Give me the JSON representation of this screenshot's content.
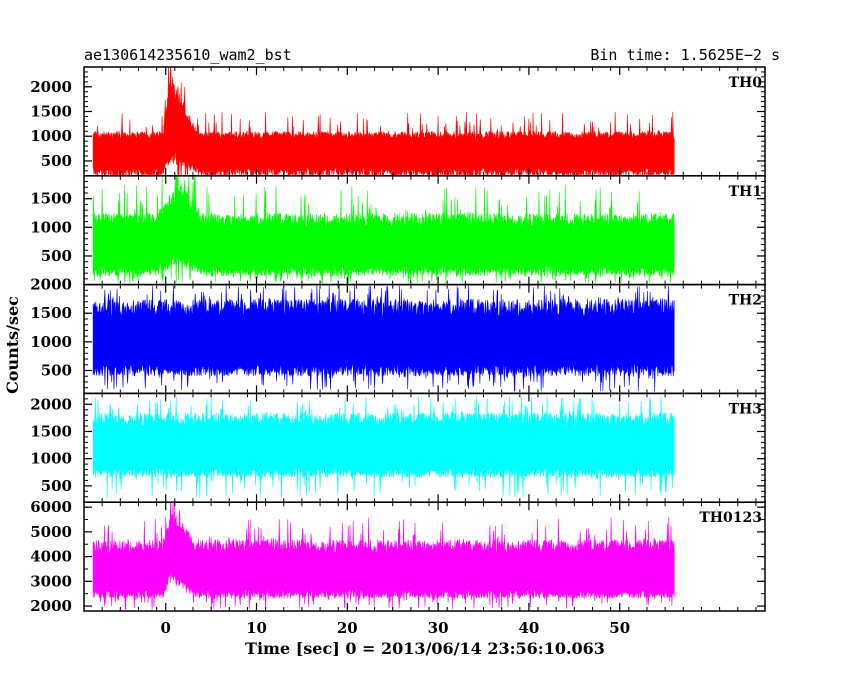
{
  "header": {
    "title": "ae130614235610_wam2_bst",
    "bin_time": "Bin time: 1.5625E−2 s"
  },
  "chart_data": {
    "type": "line",
    "xlabel": "Time [sec] 0 = 2013/06/14 23:56:10.063",
    "ylabel": "Counts/sec",
    "xlim": [
      -9,
      66
    ],
    "x_ticks": [
      0,
      10,
      20,
      30,
      40,
      50
    ],
    "x_range_data": [
      -8,
      56
    ],
    "panels": [
      {
        "name": "TH0",
        "color": "#ff0000",
        "ylim": [
          200,
          2400
        ],
        "y_ticks": [
          500,
          1000,
          1500,
          2000
        ],
        "baseline": {
          "mean": 750,
          "upper_typical": 1100,
          "upper_spikes": 1500,
          "lower_typical": 180,
          "lower_spikes": 50
        },
        "burst": {
          "start": -0.3,
          "peak_time": 0.5,
          "peak_value": 2400,
          "decay_end": 3.5,
          "floor_peak": 650
        }
      },
      {
        "name": "TH1",
        "color": "#00ff00",
        "ylim": [
          0,
          1900
        ],
        "y_ticks": [
          500,
          1000,
          1500
        ],
        "baseline": {
          "mean": 700,
          "upper_typical": 1250,
          "upper_spikes": 1750,
          "lower_typical": 150,
          "lower_spikes": 20
        },
        "burst": {
          "start": -1,
          "peak_time": 1.5,
          "peak_value": 1900,
          "decay_end": 4,
          "floor_peak": 450
        }
      },
      {
        "name": "TH2",
        "color": "#0000ff",
        "ylim": [
          100,
          2000
        ],
        "y_ticks": [
          500,
          1000,
          1500,
          2000
        ],
        "baseline": {
          "mean": 1050,
          "upper_typical": 1750,
          "upper_spikes": 2000,
          "lower_typical": 400,
          "lower_spikes": 130
        },
        "burst": null
      },
      {
        "name": "TH3",
        "color": "#00ffff",
        "ylim": [
          200,
          2200
        ],
        "y_ticks": [
          500,
          1000,
          1500,
          2000
        ],
        "baseline": {
          "mean": 1250,
          "upper_typical": 1850,
          "upper_spikes": 2150,
          "lower_typical": 650,
          "lower_spikes": 250
        },
        "burst": null
      },
      {
        "name": "TH0123",
        "color": "#ff00ff",
        "ylim": [
          1800,
          6200
        ],
        "y_ticks": [
          2000,
          3000,
          4000,
          5000,
          6000
        ],
        "baseline": {
          "mean": 3400,
          "upper_typical": 4700,
          "upper_spikes": 5600,
          "lower_typical": 2300,
          "lower_spikes": 1850
        },
        "burst": {
          "start": -0.3,
          "peak_time": 0.5,
          "peak_value": 6200,
          "decay_end": 3.5,
          "floor_peak": 3300
        }
      }
    ]
  }
}
